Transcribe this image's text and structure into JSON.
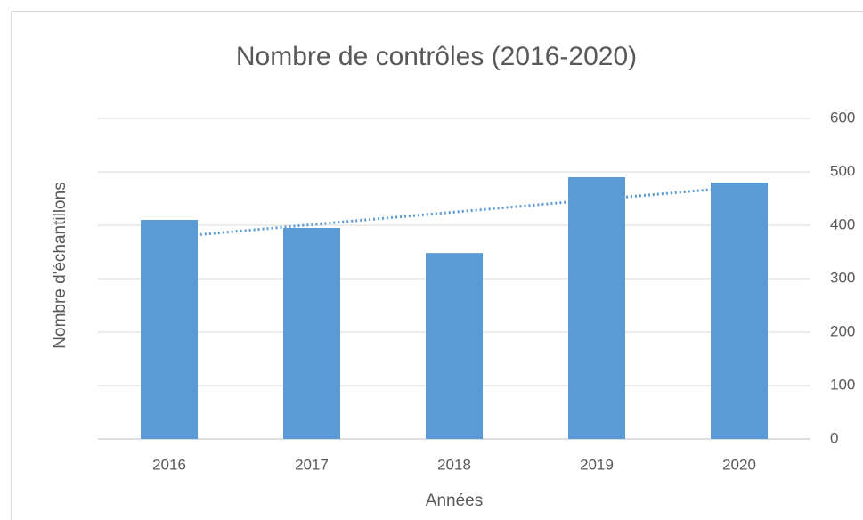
{
  "chart_data": {
    "type": "bar",
    "title": "Nombre de contrôles (2016-2020)",
    "x_label": "Années",
    "y_label": "Nombre d'échantillons",
    "categories": [
      "2016",
      "2017",
      "2018",
      "2019",
      "2020"
    ],
    "values": [
      410,
      395,
      348,
      490,
      480
    ],
    "color": "#5b9bd5",
    "ylim": [
      0,
      600
    ],
    "yticks": [
      0,
      100,
      200,
      300,
      400,
      500,
      600
    ],
    "grid": true,
    "y_axis_side": "right",
    "trendline": "linear",
    "trendline_color": "#5b9bd5"
  }
}
